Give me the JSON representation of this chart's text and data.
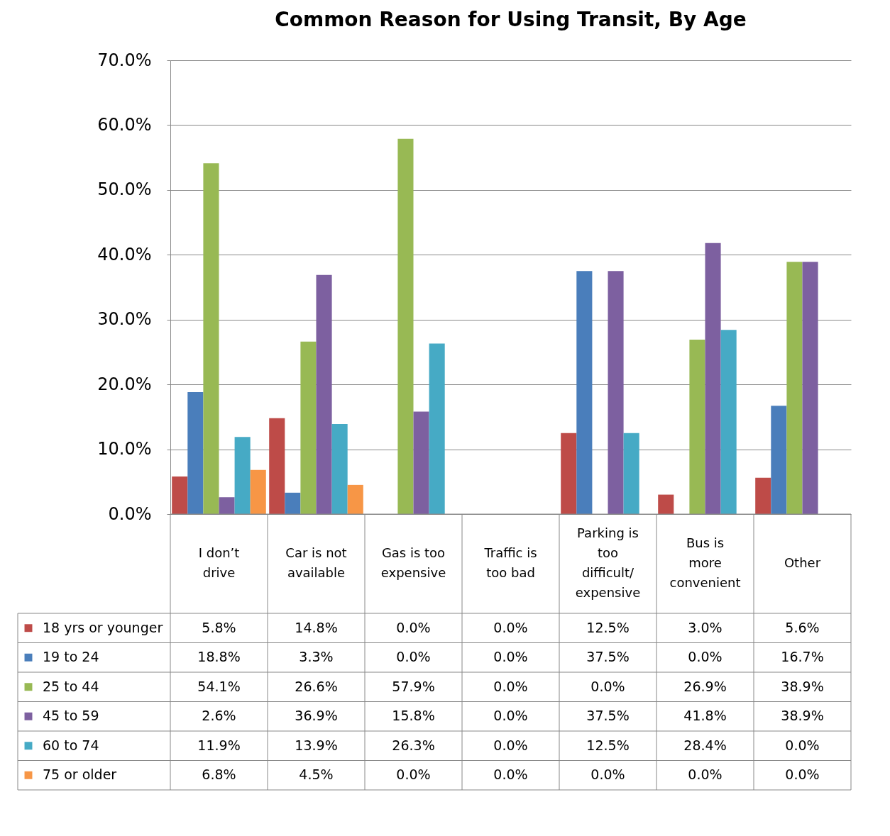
{
  "chart_data": {
    "type": "bar",
    "title": "Common Reason for Using Transit, By Age",
    "categories": [
      "I don’t drive",
      "Car is not available",
      "Gas is too expensive",
      "Traffic is too bad",
      "Parking is too difficult/expensive",
      "Bus is more convenient",
      "Other"
    ],
    "series": [
      {
        "name": "18 yrs or younger",
        "color": "#be4b48",
        "values": [
          5.8,
          14.8,
          0.0,
          0.0,
          12.5,
          3.0,
          5.6
        ],
        "value_labels": [
          "5.8%",
          "14.8%",
          "0.0%",
          "0.0%",
          "12.5%",
          "3.0%",
          "5.6%"
        ]
      },
      {
        "name": "19 to 24",
        "color": "#4a7ebb",
        "values": [
          18.8,
          3.3,
          0.0,
          0.0,
          37.5,
          0.0,
          16.7
        ],
        "value_labels": [
          "18.8%",
          "3.3%",
          "0.0%",
          "0.0%",
          "37.5%",
          "0.0%",
          "16.7%"
        ]
      },
      {
        "name": "25 to 44",
        "color": "#98b954",
        "values": [
          54.1,
          26.6,
          57.9,
          0.0,
          0.0,
          26.9,
          38.9
        ],
        "value_labels": [
          "54.1%",
          "26.6%",
          "57.9%",
          "0.0%",
          "0.0%",
          "26.9%",
          "38.9%"
        ]
      },
      {
        "name": "45 to 59",
        "color": "#7d60a0",
        "values": [
          2.6,
          36.9,
          15.8,
          0.0,
          37.5,
          41.8,
          38.9
        ],
        "value_labels": [
          "2.6%",
          "36.9%",
          "15.8%",
          "0.0%",
          "37.5%",
          "41.8%",
          "38.9%"
        ]
      },
      {
        "name": "60 to 74",
        "color": "#46aac5",
        "values": [
          11.9,
          13.9,
          26.3,
          0.0,
          12.5,
          28.4,
          0.0
        ],
        "value_labels": [
          "11.9%",
          "13.9%",
          "26.3%",
          "0.0%",
          "12.5%",
          "28.4%",
          "0.0%"
        ]
      },
      {
        "name": "75 or older",
        "color": "#f79646",
        "values": [
          6.8,
          4.5,
          0.0,
          0.0,
          0.0,
          0.0,
          0.0
        ],
        "value_labels": [
          "6.8%",
          "4.5%",
          "0.0%",
          "0.0%",
          "0.0%",
          "0.0%",
          "0.0%"
        ]
      }
    ],
    "ylim": [
      0,
      70
    ],
    "yticks": [
      {
        "value": 0,
        "label": "0.0%"
      },
      {
        "value": 10,
        "label": "10.0%"
      },
      {
        "value": 20,
        "label": "20.0%"
      },
      {
        "value": 30,
        "label": "30.0%"
      },
      {
        "value": 40,
        "label": "40.0%"
      },
      {
        "value": 50,
        "label": "50.0%"
      },
      {
        "value": 60,
        "label": "60.0%"
      },
      {
        "value": 70,
        "label": "70.0%"
      }
    ],
    "grid": "y",
    "legend": "bottom"
  }
}
